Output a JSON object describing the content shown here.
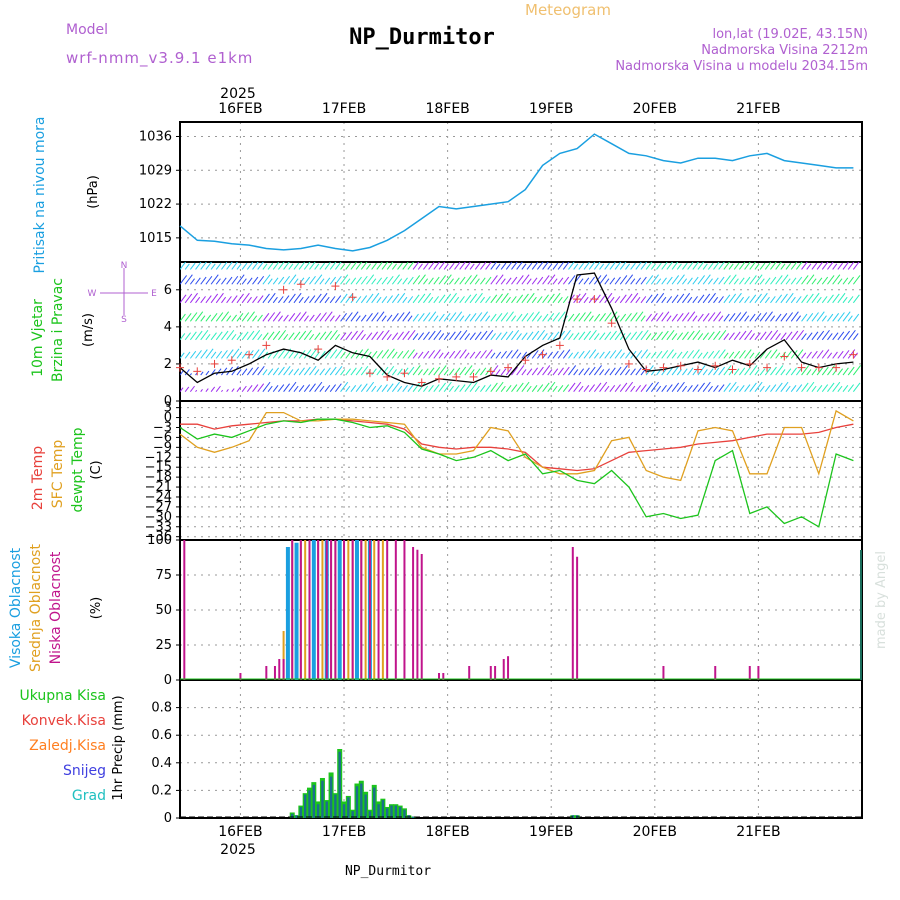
{
  "header": {
    "model_label": "Model",
    "model_name": "wrf-nmm_v3.9.1 e1km",
    "title": "NP_Durmitor",
    "product": "Meteogram",
    "coords": "lon,lat (19.02E, 43.15N)",
    "elevation": "Nadmorska Visina 2212m",
    "elevation_model": "Nadmorska Visina u modelu 2034.15m"
  },
  "footer": {
    "station": "NP_Durmitor",
    "credit": "made by Angel"
  },
  "time_axis": {
    "year": "2025",
    "days": [
      "16FEB",
      "17FEB",
      "18FEB",
      "19FEB",
      "20FEB",
      "21FEB"
    ],
    "start_hour": 0,
    "end_hour": 142
  },
  "colors": {
    "pressure": "#1a9fe0",
    "wind_speed": "#000000",
    "gust_marker": "#e8413c",
    "temp_2m": "#e8413c",
    "temp_sfc": "#e0a020",
    "dewpoint": "#1cc41c",
    "cloud_high": "#1a9fe0",
    "cloud_mid": "#e0a020",
    "cloud_low": "#c0148c",
    "precip_total": "#1cc41c",
    "precip_conv": "#e8413c",
    "precip_frz": "#ff7f20",
    "precip_snow": "#4040e0",
    "precip_grad": "#20c0c0"
  },
  "labels": {
    "pressure_name": "Pritisak na nivou mora",
    "pressure_unit": "(hPa)",
    "wind_name1": "10m Vjetar",
    "wind_name2": "Brzina i Pravac",
    "wind_unit": "(m/s)",
    "compass_n": "N",
    "compass_s": "S",
    "compass_w": "W",
    "compass_e": "E",
    "temp_2m": "2m Temp",
    "temp_sfc": "SFC Temp",
    "temp_dew": "dewpt Temp",
    "temp_unit": "(C)",
    "cloud_high": "Visoka Oblacnost",
    "cloud_mid": "Srednja Oblacnost",
    "cloud_low": "Niska Oblacnost",
    "cloud_unit": "(%)",
    "precip_total": "Ukupna Kisa",
    "precip_conv": "Konvek.Kisa",
    "precip_frz": "Zaledj.Kisa",
    "precip_snow": "Snijeg",
    "precip_grad": "Grad",
    "precip_unit": "1hr Precip (mm)"
  },
  "chart_data": [
    {
      "type": "line",
      "x_unit": "hours from 16FEB 00UTC",
      "ylim": [
        1010,
        1039
      ],
      "yticks": [
        1015,
        1022,
        1029,
        1036
      ],
      "grid": true,
      "x": [
        -14,
        -10,
        -6,
        -2,
        2,
        6,
        10,
        14,
        18,
        22,
        26,
        30,
        34,
        38,
        42,
        46,
        50,
        54,
        58,
        62,
        66,
        70,
        74,
        78,
        82,
        86,
        90,
        94,
        98,
        102,
        106,
        110,
        114,
        118,
        122,
        126,
        130,
        134,
        138,
        142
      ],
      "values": [
        1017.5,
        1014.5,
        1014.3,
        1013.8,
        1013.5,
        1012.8,
        1012.5,
        1012.8,
        1013.5,
        1012.8,
        1012.3,
        1013,
        1014.5,
        1016.5,
        1019,
        1021.5,
        1021,
        1021.5,
        1022,
        1022.5,
        1025,
        1030,
        1032.5,
        1033.5,
        1036.5,
        1034.5,
        1032.5,
        1032,
        1031,
        1030.5,
        1031.5,
        1031.5,
        1031,
        1032,
        1032.5,
        1031,
        1030.5,
        1030,
        1029.5,
        1029.5
      ]
    },
    {
      "type": "line",
      "x_unit": "hours from 16FEB 00UTC",
      "ylim": [
        0,
        7.5
      ],
      "yticks": [
        0,
        2,
        4,
        6
      ],
      "grid": true,
      "series": [
        {
          "kind": "wind_speed",
          "x": [
            -14,
            -10,
            -6,
            -2,
            2,
            6,
            10,
            14,
            18,
            22,
            26,
            30,
            34,
            38,
            42,
            46,
            50,
            54,
            58,
            62,
            66,
            70,
            74,
            78,
            82,
            86,
            90,
            94,
            98,
            102,
            106,
            110,
            114,
            118,
            122,
            126,
            130,
            134,
            138,
            142
          ],
          "values": [
            1.8,
            1.0,
            1.5,
            1.6,
            2.0,
            2.5,
            2.8,
            2.6,
            2.2,
            3.0,
            2.6,
            2.4,
            1.4,
            1.0,
            0.8,
            1.2,
            1.1,
            1.0,
            1.4,
            1.3,
            2.4,
            3.0,
            3.4,
            6.8,
            6.9,
            5.0,
            2.8,
            1.6,
            1.7,
            1.9,
            2.1,
            1.8,
            2.2,
            1.9,
            2.8,
            3.3,
            2.1,
            1.8,
            2.0,
            2.1
          ]
        },
        {
          "kind": "gust",
          "x": [
            -14,
            -10,
            -6,
            -2,
            2,
            6,
            10,
            14,
            18,
            22,
            26,
            30,
            34,
            38,
            42,
            46,
            50,
            54,
            58,
            62,
            66,
            70,
            74,
            78,
            82,
            86,
            90,
            94,
            98,
            102,
            106,
            110,
            114,
            118,
            122,
            126,
            130,
            134,
            138,
            142
          ],
          "values": [
            1.8,
            1.6,
            2.0,
            2.2,
            2.5,
            3.0,
            6.0,
            6.3,
            2.8,
            6.2,
            5.6,
            1.5,
            1.3,
            1.5,
            1.0,
            1.2,
            1.3,
            1.3,
            1.6,
            1.8,
            2.2,
            2.5,
            3.0,
            5.5,
            5.5,
            4.2,
            2.0,
            1.7,
            1.8,
            1.9,
            1.7,
            1.9,
            1.7,
            2.0,
            1.8,
            2.4,
            1.8,
            1.8,
            1.8,
            2.5
          ]
        }
      ]
    },
    {
      "type": "line",
      "x_unit": "hours from 16FEB 00UTC",
      "ylim": [
        -37,
        5
      ],
      "yticks": [
        3,
        0,
        -3,
        -6,
        -9,
        -12,
        -15,
        -18,
        -21,
        -24,
        -27,
        -30,
        -33,
        -36
      ],
      "grid": true,
      "x": [
        -14,
        -10,
        -6,
        -2,
        2,
        6,
        10,
        14,
        18,
        22,
        26,
        30,
        34,
        38,
        42,
        46,
        50,
        54,
        58,
        62,
        66,
        70,
        74,
        78,
        82,
        86,
        90,
        94,
        98,
        102,
        106,
        110,
        114,
        118,
        122,
        126,
        130,
        134,
        138,
        142
      ],
      "series": [
        {
          "name": "2m Temp",
          "values": [
            -2,
            -2,
            -3.5,
            -2.5,
            -2,
            -1.5,
            -1,
            -1,
            -0.5,
            -0.5,
            -1,
            -1.5,
            -2,
            -3.5,
            -8,
            -9,
            -9.5,
            -9,
            -9,
            -9.5,
            -10.5,
            -15,
            -15.5,
            -16,
            -15.5,
            -13,
            -10.5,
            -10,
            -9.5,
            -9,
            -8,
            -7.5,
            -7,
            -6,
            -5,
            -5,
            -5,
            -4.5,
            -3,
            -2
          ]
        },
        {
          "name": "SFC Temp",
          "values": [
            -5,
            -9,
            -10.5,
            -9,
            -7,
            1.5,
            1.5,
            -1,
            -1,
            -0.5,
            -0.5,
            -1,
            -1.5,
            -2,
            -9,
            -11,
            -11,
            -10,
            -3,
            -4,
            -12,
            -15,
            -17,
            -17,
            -16,
            -7,
            -6,
            -16,
            -18,
            -19,
            -4,
            -3,
            -4,
            -17,
            -17,
            -3,
            -3,
            -17,
            2,
            -1
          ]
        },
        {
          "name": "dewpt Temp",
          "values": [
            -3,
            -6.5,
            -5,
            -6,
            -4,
            -2,
            -1,
            -1.5,
            -0.5,
            -0.5,
            -1.5,
            -3,
            -2.5,
            -4.5,
            -9.5,
            -11,
            -13,
            -12,
            -10,
            -13,
            -11,
            -17,
            -16,
            -19,
            -20,
            -16,
            -21,
            -30,
            -29,
            -30.5,
            -29.5,
            -13,
            -10,
            -29,
            -27,
            -32,
            -30,
            -33,
            -11,
            -13
          ]
        }
      ]
    },
    {
      "type": "bar",
      "x_unit": "hours from 16FEB 00UTC",
      "ylim": [
        0,
        100
      ],
      "yticks": [
        0,
        25,
        50,
        75,
        100
      ],
      "grid": true,
      "series": [
        {
          "name": "Visoka Oblacnost",
          "x": [
            11,
            13,
            17,
            20,
            23,
            27,
            30
          ],
          "values": [
            95,
            98,
            100,
            100,
            100,
            100,
            100
          ]
        },
        {
          "name": "Srednja Oblacnost",
          "x": [
            10,
            12,
            14,
            15,
            16,
            18,
            19,
            21,
            22,
            24,
            25,
            26,
            28,
            29,
            31,
            33
          ],
          "values": [
            35,
            100,
            100,
            100,
            100,
            100,
            100,
            100,
            100,
            100,
            100,
            100,
            100,
            100,
            100,
            100
          ]
        },
        {
          "name": "Niska Oblacnost",
          "x": [
            -13,
            0,
            6,
            8,
            9,
            10,
            12,
            14,
            16,
            18,
            20,
            21,
            22,
            24,
            26,
            28,
            30,
            32,
            34,
            36,
            38,
            40,
            41,
            42,
            46,
            47,
            53,
            58,
            59,
            61,
            62,
            77,
            78,
            98,
            110,
            118,
            120
          ],
          "values": [
            100,
            5,
            10,
            10,
            15,
            15,
            100,
            100,
            100,
            100,
            100,
            100,
            100,
            100,
            100,
            100,
            100,
            100,
            100,
            100,
            100,
            95,
            93,
            90,
            5,
            5,
            10,
            10,
            10,
            15,
            17,
            95,
            88,
            10,
            10,
            10,
            10
          ]
        }
      ]
    },
    {
      "type": "bar",
      "x_unit": "hours from 16FEB 00UTC",
      "ylim": [
        0,
        1.0
      ],
      "yticks": [
        0,
        0.2,
        0.4,
        0.6,
        0.8
      ],
      "grid": true,
      "series": [
        {
          "name": "Ukupna Kisa",
          "x": [
            12,
            13,
            14,
            15,
            16,
            17,
            18,
            19,
            20,
            21,
            22,
            23,
            24,
            25,
            26,
            27,
            28,
            29,
            30,
            31,
            32,
            33,
            34,
            35,
            36,
            37,
            38,
            39,
            40,
            77,
            78
          ],
          "values": [
            0.04,
            0.02,
            0.09,
            0.18,
            0.22,
            0.26,
            0.12,
            0.29,
            0.13,
            0.33,
            0.18,
            0.5,
            0.12,
            0.16,
            0.06,
            0.25,
            0.27,
            0.19,
            0.06,
            0.24,
            0.12,
            0.14,
            0.08,
            0.1,
            0.1,
            0.09,
            0.07,
            0.02,
            0.01,
            0.02,
            0.02
          ]
        },
        {
          "name": "Snijeg",
          "x": [
            12,
            13,
            14,
            15,
            16,
            17,
            18,
            19,
            20,
            21,
            22,
            23,
            24,
            25,
            26,
            27,
            28,
            29,
            30,
            31,
            32,
            33,
            34,
            35,
            36,
            37,
            38,
            39,
            40,
            77,
            78
          ],
          "values": [
            0.03,
            0.02,
            0.08,
            0.17,
            0.2,
            0.24,
            0.1,
            0.27,
            0.12,
            0.3,
            0.17,
            0.48,
            0.1,
            0.15,
            0.05,
            0.23,
            0.25,
            0.17,
            0.05,
            0.22,
            0.1,
            0.13,
            0.07,
            0.09,
            0.09,
            0.08,
            0.06,
            0.02,
            0.01,
            0.02,
            0.02
          ]
        }
      ]
    }
  ]
}
